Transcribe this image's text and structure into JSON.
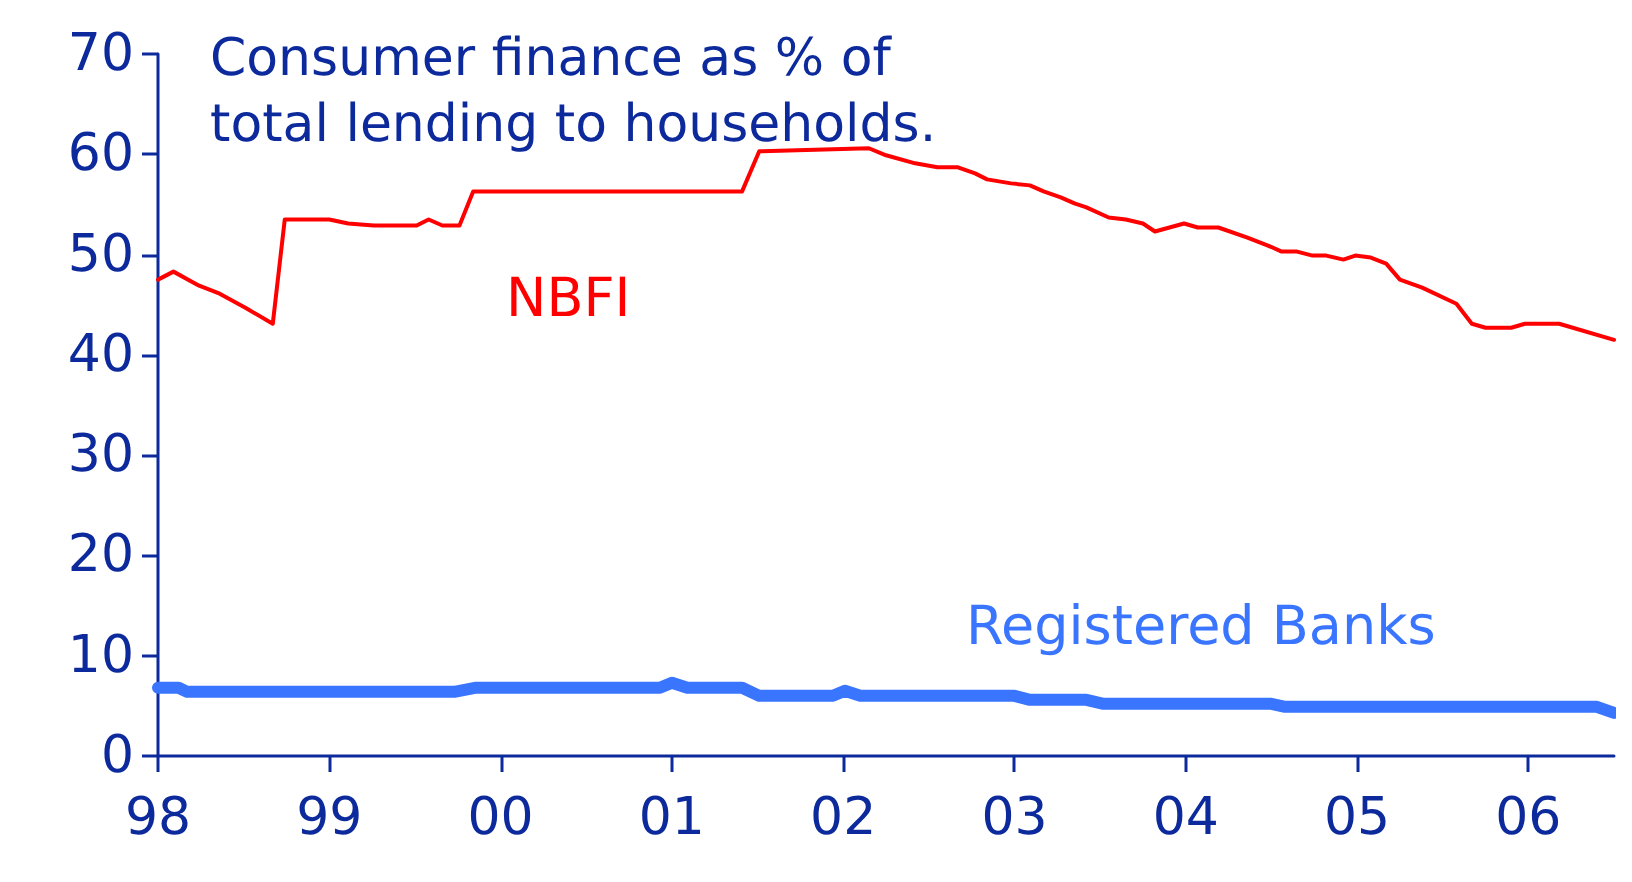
{
  "chart_data": {
    "type": "line",
    "title": "Consumer finance as % of\ntotal lending to households.",
    "xlim": [
      1998,
      2006.5
    ],
    "xticks": [
      {
        "value": 1998,
        "label": "98"
      },
      {
        "value": 1999,
        "label": "99"
      },
      {
        "value": 2000,
        "label": "00"
      },
      {
        "value": 2001,
        "label": "01"
      },
      {
        "value": 2002,
        "label": "02"
      },
      {
        "value": 2003,
        "label": "03"
      },
      {
        "value": 2004,
        "label": "04"
      },
      {
        "value": 2005,
        "label": "05"
      },
      {
        "value": 2006,
        "label": "06"
      }
    ],
    "ylim": [
      0,
      70
    ],
    "yticks": [
      0,
      10,
      20,
      30,
      40,
      50,
      60,
      70
    ],
    "grid": false,
    "legend": false,
    "marker": "none",
    "line_style": "solid",
    "series": [
      {
        "name": "NBFI",
        "color": "#ff0000",
        "x": [
          1998.0,
          1998.09,
          1998.24,
          1998.36,
          1998.51,
          1998.67,
          1998.74,
          1999.0,
          1999.11,
          1999.26,
          1999.51,
          1999.58,
          1999.66,
          1999.76,
          1999.84,
          2001.41,
          2001.51,
          2001.94,
          2002.15,
          2002.25,
          2002.42,
          2002.55,
          2002.67,
          2002.77,
          2002.84,
          2002.98,
          2003.09,
          2003.17,
          2003.27,
          2003.35,
          2003.42,
          2003.55,
          2003.65,
          2003.75,
          2003.82,
          2003.99,
          2004.07,
          2004.19,
          2004.36,
          2004.48,
          2004.56,
          2004.65,
          2004.74,
          2004.82,
          2004.92,
          2004.99,
          2005.08,
          2005.17,
          2005.25,
          2005.38,
          2005.58,
          2005.67,
          2005.75,
          2005.9,
          2005.98,
          2006.18,
          2006.5
        ],
        "values": [
          47.5,
          48.3,
          46.9,
          46.1,
          44.7,
          43.1,
          53.5,
          53.5,
          53.1,
          52.9,
          52.9,
          53.5,
          52.9,
          52.9,
          56.3,
          56.3,
          60.3,
          60.5,
          60.6,
          59.9,
          59.1,
          58.7,
          58.7,
          58.1,
          57.5,
          57.1,
          56.9,
          56.3,
          55.7,
          55.1,
          54.7,
          53.7,
          53.5,
          53.1,
          52.3,
          53.1,
          52.7,
          52.7,
          51.7,
          50.9,
          50.3,
          50.3,
          49.9,
          49.9,
          49.5,
          49.9,
          49.7,
          49.1,
          47.5,
          46.7,
          45.1,
          43.1,
          42.7,
          42.7,
          43.1,
          43.1,
          41.5
        ]
      },
      {
        "name": "Registered Banks",
        "color": "#3a75ff",
        "x": [
          1998.0,
          1998.12,
          1998.17,
          1999.73,
          1999.85,
          2000.93,
          2001.0,
          2001.09,
          2001.41,
          2001.51,
          2001.94,
          2002.01,
          2002.1,
          2003.0,
          2003.09,
          2003.42,
          2003.52,
          2004.5,
          2004.58,
          2006.4,
          2006.5
        ],
        "values": [
          6.8,
          6.8,
          6.4,
          6.4,
          6.8,
          6.8,
          7.3,
          6.8,
          6.8,
          6.0,
          6.0,
          6.5,
          6.0,
          6.0,
          5.6,
          5.6,
          5.2,
          5.2,
          4.9,
          4.9,
          4.3
        ]
      }
    ]
  }
}
